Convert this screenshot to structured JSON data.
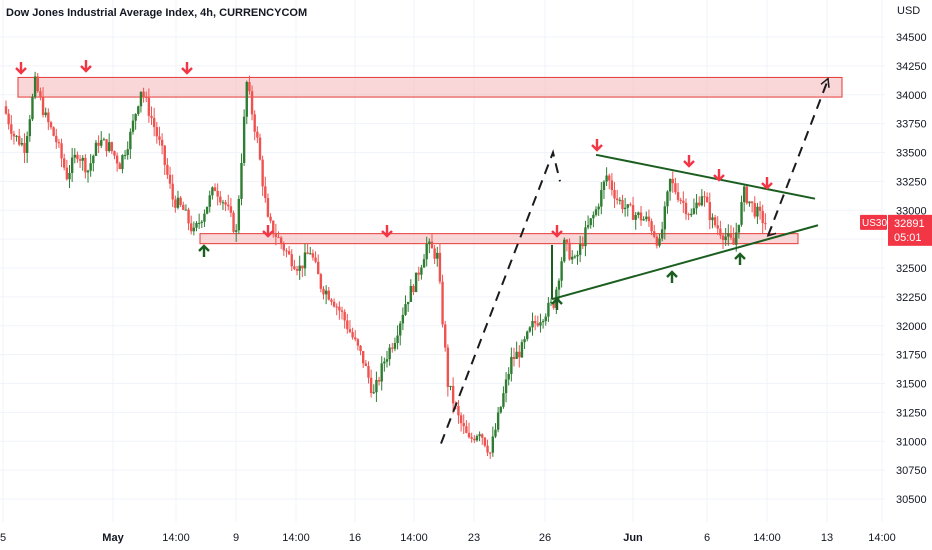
{
  "header": {
    "title": "Dow Jones Industrial Average Index, 4h, CURRENCYCOM"
  },
  "price_tag": {
    "symbol": "US30",
    "price": "32891",
    "countdown": "05:01"
  },
  "colors": {
    "up": "#26a69a",
    "down": "#ef5350",
    "bullish_body": "#2e7d32",
    "bearish_body": "#ef5350",
    "zone_fill": "#f4b6b8",
    "zone_stroke": "#e53935",
    "trend_line": "#1b5e20",
    "arrow_down": "#f23645",
    "arrow_up": "#1b5e20",
    "tag_bg": "#f23645"
  },
  "chart_data": {
    "type": "candlestick",
    "title": "Dow Jones Industrial Average Index, 4h, CURRENCYCOM",
    "y_axis_unit": "USD",
    "ylim": [
      30400,
      34850
    ],
    "y_ticks": [
      "34500",
      "34250",
      "34000",
      "33750",
      "33500",
      "33250",
      "33000",
      "32750",
      "32500",
      "32250",
      "32000",
      "31750",
      "31500",
      "31250",
      "31000",
      "30750",
      "30500"
    ],
    "x_tick_labels": [
      "5",
      "May",
      "14:00",
      "9",
      "14:00",
      "16",
      "14:00",
      "23",
      "26",
      "Jun",
      "6",
      "14:00",
      "13",
      "14:00"
    ],
    "bold_x_ticks": [
      "May",
      "Jun"
    ],
    "series": [
      {
        "x": 0,
        "c": 33900
      },
      {
        "x": 1,
        "c": 33650
      },
      {
        "x": 2,
        "c": 33550
      },
      {
        "x": 3,
        "c": 34100
      },
      {
        "x": 4,
        "c": 33800
      },
      {
        "x": 5,
        "c": 33600
      },
      {
        "x": 6,
        "c": 33300
      },
      {
        "x": 7,
        "c": 33500
      },
      {
        "x": 8,
        "c": 33350
      },
      {
        "x": 9,
        "c": 33600
      },
      {
        "x": 10,
        "c": 33550
      },
      {
        "x": 11,
        "c": 33400
      },
      {
        "x": 12,
        "c": 33650
      },
      {
        "x": 13,
        "c": 34050
      },
      {
        "x": 14,
        "c": 33800
      },
      {
        "x": 15,
        "c": 33500
      },
      {
        "x": 16,
        "c": 33100
      },
      {
        "x": 17,
        "c": 33000
      },
      {
        "x": 18,
        "c": 32800
      },
      {
        "x": 19,
        "c": 33000
      },
      {
        "x": 20,
        "c": 33200
      },
      {
        "x": 21,
        "c": 33050
      },
      {
        "x": 22,
        "c": 32800
      },
      {
        "x": 23,
        "c": 34100
      },
      {
        "x": 24,
        "c": 33600
      },
      {
        "x": 25,
        "c": 32900
      },
      {
        "x": 26,
        "c": 32750
      },
      {
        "x": 27,
        "c": 32600
      },
      {
        "x": 28,
        "c": 32500
      },
      {
        "x": 29,
        "c": 32650
      },
      {
        "x": 30,
        "c": 32350
      },
      {
        "x": 31,
        "c": 32250
      },
      {
        "x": 32,
        "c": 32100
      },
      {
        "x": 33,
        "c": 31900
      },
      {
        "x": 34,
        "c": 31700
      },
      {
        "x": 35,
        "c": 31400
      },
      {
        "x": 36,
        "c": 31700
      },
      {
        "x": 37,
        "c": 31900
      },
      {
        "x": 38,
        "c": 32200
      },
      {
        "x": 39,
        "c": 32400
      },
      {
        "x": 40,
        "c": 32700
      },
      {
        "x": 41,
        "c": 32600
      },
      {
        "x": 42,
        "c": 31500
      },
      {
        "x": 43,
        "c": 31200
      },
      {
        "x": 44,
        "c": 31000
      },
      {
        "x": 45,
        "c": 31100
      },
      {
        "x": 46,
        "c": 30900
      },
      {
        "x": 47,
        "c": 31300
      },
      {
        "x": 48,
        "c": 31700
      },
      {
        "x": 49,
        "c": 31800
      },
      {
        "x": 50,
        "c": 32000
      },
      {
        "x": 51,
        "c": 32100
      },
      {
        "x": 52,
        "c": 32200
      },
      {
        "x": 53,
        "c": 32700
      },
      {
        "x": 54,
        "c": 32550
      },
      {
        "x": 55,
        "c": 32800
      },
      {
        "x": 56,
        "c": 33000
      },
      {
        "x": 57,
        "c": 33300
      },
      {
        "x": 58,
        "c": 33100
      },
      {
        "x": 59,
        "c": 33000
      },
      {
        "x": 60,
        "c": 32950
      },
      {
        "x": 61,
        "c": 32900
      },
      {
        "x": 62,
        "c": 32700
      },
      {
        "x": 63,
        "c": 33250
      },
      {
        "x": 64,
        "c": 33100
      },
      {
        "x": 65,
        "c": 32950
      },
      {
        "x": 66,
        "c": 33150
      },
      {
        "x": 67,
        "c": 32900
      },
      {
        "x": 68,
        "c": 32800
      },
      {
        "x": 69,
        "c": 32700
      },
      {
        "x": 70,
        "c": 33150
      },
      {
        "x": 71,
        "c": 33000
      },
      {
        "x": 72,
        "c": 32891
      }
    ],
    "resistance_zone_upper": [
      33980,
      34150
    ],
    "support_zone": [
      32700,
      32780
    ],
    "legend": "none",
    "grid": true
  }
}
